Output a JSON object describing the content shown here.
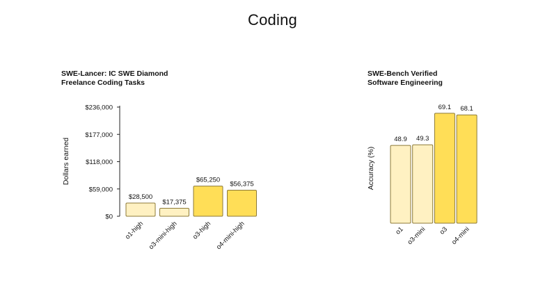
{
  "page": {
    "title": "Coding"
  },
  "colors": {
    "light": "#FFF1C2",
    "dark": "#FFDE57",
    "stroke": "#8C7A38",
    "axis": "#222222"
  },
  "chart_data": [
    {
      "type": "bar",
      "title_lines": [
        "SWE-Lancer: IC SWE Diamond",
        "Freelance Coding Tasks"
      ],
      "ylabel": "Dollars earned",
      "ylim": [
        0,
        236000
      ],
      "yticks": [
        0,
        59000,
        118000,
        177000,
        236000
      ],
      "ytick_labels": [
        "$0",
        "$59,000",
        "$118,000",
        "$177,000",
        "$236,000"
      ],
      "categories": [
        "o1-high",
        "o3-mini-high",
        "o3-high",
        "o4-mini-high"
      ],
      "values": [
        28500,
        17375,
        65250,
        56375
      ],
      "value_labels": [
        "$28,500",
        "$17,375",
        "$65,250",
        "$56,375"
      ],
      "shades": [
        "light",
        "light",
        "dark",
        "dark"
      ],
      "grid": false
    },
    {
      "type": "bar",
      "title_lines": [
        "SWE-Bench Verified",
        "Software Engineering"
      ],
      "ylabel": "Accuracy (%)",
      "ylim": [
        0,
        73
      ],
      "categories": [
        "o1",
        "o3-mini",
        "o3",
        "o4-mini"
      ],
      "values": [
        48.9,
        49.3,
        69.1,
        68.1
      ],
      "value_labels": [
        "48.9",
        "49.3",
        "69.1",
        "68.1"
      ],
      "shades": [
        "light",
        "light",
        "dark",
        "dark"
      ],
      "grid": false
    }
  ]
}
